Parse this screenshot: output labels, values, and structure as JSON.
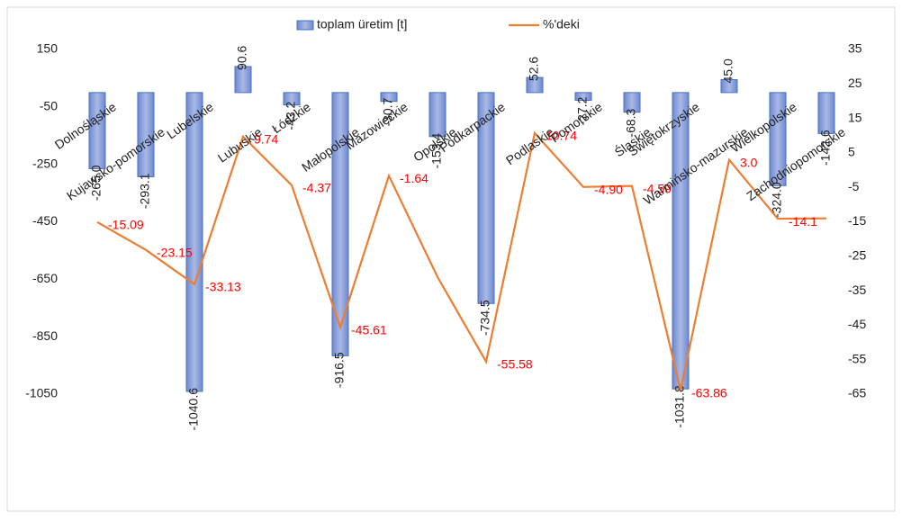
{
  "chart_data": {
    "type": "bar-line",
    "categories": [
      "Dolnośląskie",
      "Kujawsko-pomorskie",
      "Lubelskie",
      "Lubuskie",
      "Łódzkie",
      "Małopolskie",
      "Mazowieckie",
      "Opolskie",
      "Podkarpackie",
      "Podlaskie",
      "Pomorskie",
      "Śląskie",
      "Świętokrzyskie",
      "Warmińsko-mazurskie",
      "Wielkopolskie",
      "Zachodniopomorskie"
    ],
    "series": [
      {
        "name": "toplam üretim [t]",
        "type": "bar",
        "color": "#8fa3d8",
        "values": [
          -265.0,
          -293.1,
          -1040.6,
          90.6,
          -43.2,
          -916.5,
          -30.7,
          -153.4,
          -734.5,
          52.6,
          -27.2,
          -68.3,
          -1031.8,
          45.0,
          -324.0,
          -142.6
        ],
        "value_labels": [
          "-265.0",
          "-293.1",
          "-1040.6",
          "90.6",
          "-43.2",
          "-916.5",
          "-30.7",
          "-153.4",
          "-734.5",
          "52.6",
          "-27.2",
          "-68.3",
          "-1031.8",
          "45.0",
          "-324.0",
          "-142.6"
        ]
      },
      {
        "name": "%'deki",
        "type": "line",
        "axis": "y2",
        "color": "#ed7d31",
        "values": [
          -15.09,
          -23.15,
          -33.13,
          9.74,
          -4.37,
          -45.61,
          -1.64,
          -31,
          -55.58,
          10.74,
          -4.9,
          -4.59,
          -63.86,
          3.0,
          -14.1,
          -14
        ],
        "value_labels": [
          "-15.09",
          "-23.15",
          "-33.13",
          "9.74",
          "-4.37",
          "-45.61",
          "-1.64",
          null,
          "-55.58",
          "10.74",
          "-4.90",
          "-4.59",
          "-63.86",
          "3.0",
          "-14.1",
          null
        ]
      }
    ],
    "ylim": [
      -1050,
      150
    ],
    "yticks": [
      150,
      -50,
      -250,
      -450,
      -650,
      -850,
      -1050
    ],
    "y2lim": [
      -65,
      35
    ],
    "y2ticks": [
      35,
      25,
      15,
      5,
      -5,
      -15,
      -25,
      -35,
      -45,
      -55,
      -65
    ],
    "legend": "top"
  }
}
